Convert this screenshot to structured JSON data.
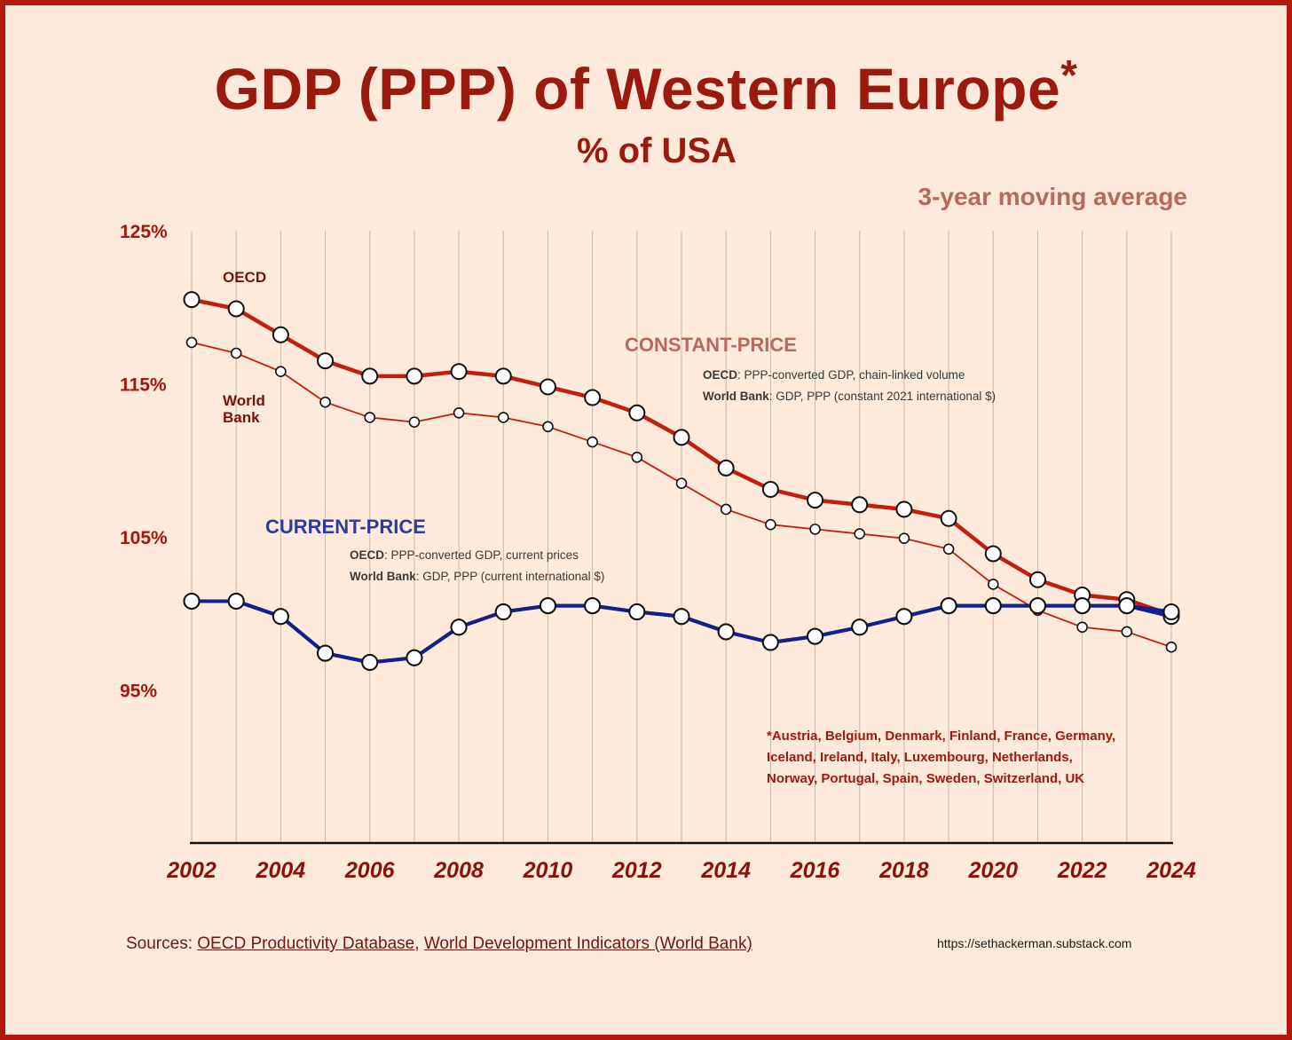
{
  "title": "GDP (PPP) of Western Europe",
  "title_mark": "*",
  "subtitle": "% of USA",
  "moving_average_label": "3-year moving average",
  "sources": {
    "prefix": "Sources: ",
    "link1": "OECD Productivity Database",
    "separator": ", ",
    "link2": "World Development Indicators (World Bank)"
  },
  "url": "https://sethackerman.substack.com",
  "colors": {
    "constant_oecd": "#c2200f",
    "constant_wb": "#c2200f",
    "current": "#12208a",
    "background": "#fdeadb",
    "border": "#b5170c"
  },
  "chart_data": {
    "type": "line",
    "title": "GDP (PPP) of Western Europe*",
    "subtitle": "% of USA",
    "x": [
      2002,
      2003,
      2004,
      2005,
      2006,
      2007,
      2008,
      2009,
      2010,
      2011,
      2012,
      2013,
      2014,
      2015,
      2016,
      2017,
      2018,
      2019,
      2020,
      2021,
      2022,
      2023,
      2024
    ],
    "xticks": [
      "2002",
      "2004",
      "2006",
      "2008",
      "2010",
      "2012",
      "2014",
      "2016",
      "2018",
      "2020",
      "2022",
      "2024"
    ],
    "yticks": [
      "125%",
      "115%",
      "105%",
      "95%"
    ],
    "ytick_values": [
      125,
      115,
      105,
      95
    ],
    "ylim": [
      85,
      125
    ],
    "grid": "vertical",
    "series": [
      {
        "name": "OECD",
        "group": "constant",
        "values": [
          120.5,
          119.9,
          118.2,
          116.5,
          115.5,
          115.5,
          115.8,
          115.5,
          114.8,
          114.1,
          113.1,
          111.5,
          109.5,
          108.1,
          107.4,
          107.1,
          106.8,
          106.2,
          103.9,
          102.2,
          101.2,
          100.9,
          99.9
        ]
      },
      {
        "name": "World Bank",
        "group": "constant",
        "values": [
          117.7,
          117.0,
          115.8,
          113.8,
          112.8,
          112.5,
          113.1,
          112.8,
          112.2,
          111.2,
          110.2,
          108.5,
          106.8,
          105.8,
          105.5,
          105.2,
          104.9,
          104.2,
          101.9,
          100.2,
          99.1,
          98.8,
          97.8
        ]
      },
      {
        "name": "OECD",
        "group": "current",
        "values": [
          100.8,
          100.8,
          99.8,
          97.4,
          96.8,
          97.1,
          99.1,
          100.1,
          100.5,
          100.5,
          100.1,
          99.8,
          98.8,
          98.1,
          98.5,
          99.1,
          99.8,
          100.5,
          100.5,
          100.5,
          100.5,
          100.5,
          100.1
        ]
      },
      {
        "name": "World Bank",
        "group": "current",
        "values": [
          100.8,
          100.8,
          99.8,
          97.4,
          96.8,
          97.1,
          99.1,
          100.1,
          100.5,
          100.5,
          100.1,
          99.8,
          98.8,
          98.1,
          98.5,
          99.1,
          99.8,
          100.5,
          100.5,
          100.5,
          100.5,
          100.5,
          99.8
        ]
      }
    ],
    "labels": {
      "oecd": "OECD",
      "world_bank_line1": "World",
      "world_bank_line2": "Bank"
    },
    "annotations": {
      "constant": {
        "heading": "CONSTANT-PRICE",
        "oecd_label": "OECD",
        "oecd_text": ": PPP-converted GDP, chain-linked volume",
        "wb_label": "World Bank",
        "wb_text": ": GDP, PPP (constant 2021 international $)"
      },
      "current": {
        "heading": "CURRENT-PRICE",
        "oecd_label": "OECD",
        "oecd_text": ": PPP-converted GDP, current prices",
        "wb_label": "World Bank",
        "wb_text": ": GDP, PPP (current international $)"
      },
      "countries": [
        "*Austria, Belgium, Denmark, Finland, France, Germany,",
        "Iceland, Ireland, Italy, Luxembourg, Netherlands,",
        "Norway, Portugal, Spain, Sweden, Switzerland, UK"
      ]
    }
  }
}
